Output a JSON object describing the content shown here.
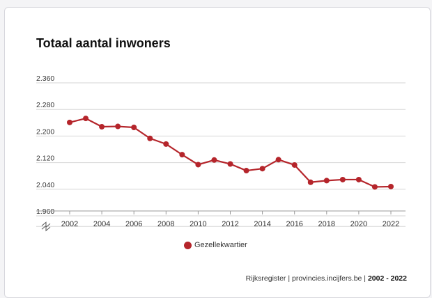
{
  "colors": {
    "series": "#b5252b",
    "grid": "#d6d6d6",
    "axis": "#999999"
  },
  "chart_data": {
    "type": "line",
    "title": "Totaal aantal inwoners",
    "x": [
      2002,
      2003,
      2004,
      2005,
      2006,
      2007,
      2008,
      2009,
      2010,
      2011,
      2012,
      2013,
      2014,
      2015,
      2016,
      2017,
      2018,
      2019,
      2020,
      2021,
      2022
    ],
    "series": [
      {
        "name": "Gezellekwartier",
        "values": [
          2241,
          2253,
          2228,
          2229,
          2226,
          2193,
          2176,
          2144,
          2114,
          2128,
          2116,
          2096,
          2102,
          2129,
          2113,
          2061,
          2066,
          2069,
          2069,
          2047,
          2048
        ]
      }
    ],
    "yticks": [
      "2.360",
      "2.280",
      "2.200",
      "2.120",
      "2.040",
      "1.960"
    ],
    "ytick_values": [
      2360,
      2280,
      2200,
      2120,
      2040,
      1960
    ],
    "xticks": [
      "2002",
      "2004",
      "2006",
      "2008",
      "2010",
      "2012",
      "2014",
      "2016",
      "2018",
      "2020",
      "2022"
    ],
    "xtick_values": [
      2002,
      2004,
      2006,
      2008,
      2010,
      2012,
      2014,
      2016,
      2018,
      2020,
      2022
    ],
    "ylim": [
      1960,
      2360
    ],
    "axis_break": true,
    "grid": true,
    "legend_position": "bottom-center"
  },
  "footer": {
    "source": "Rijksregister | provincies.incijfers.be | ",
    "period": "2002 - 2022"
  }
}
